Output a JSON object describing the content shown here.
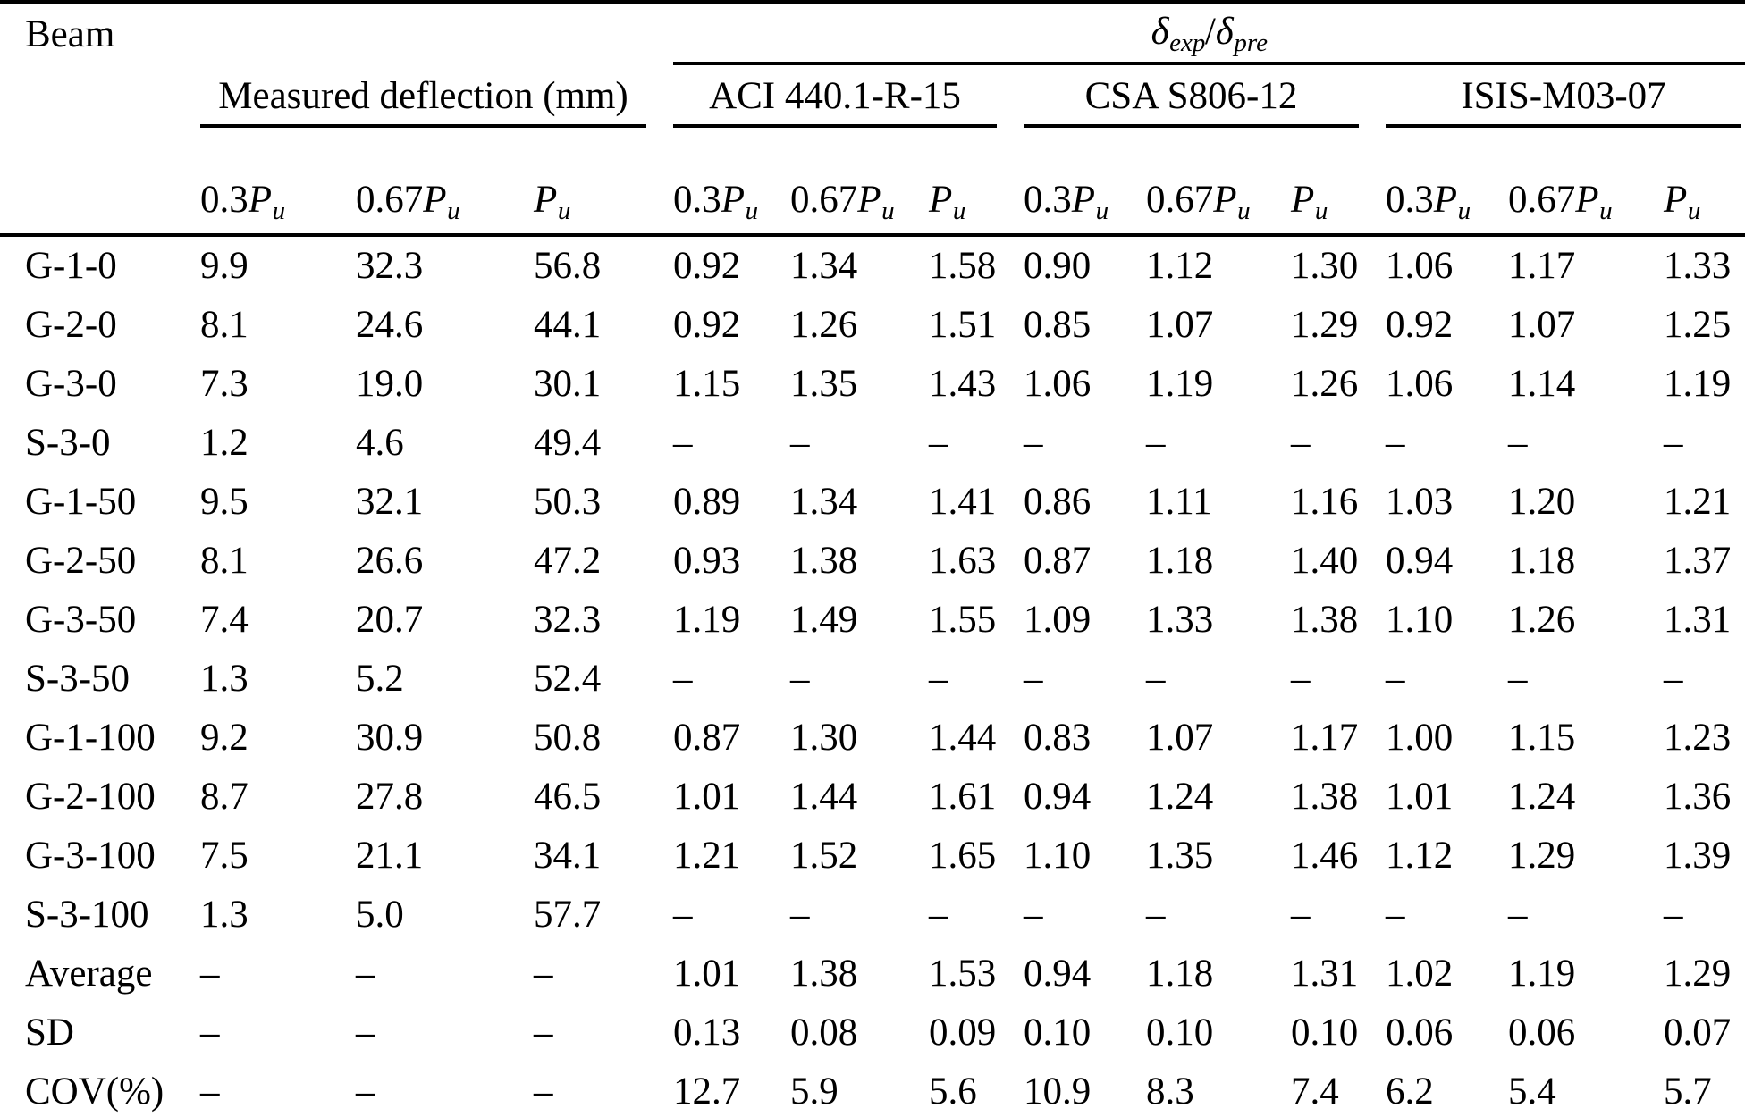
{
  "table": {
    "beam_header": "Beam",
    "ratio_header": {
      "num_symbol": "δ",
      "num_sub": "exp",
      "separator": "/",
      "den_symbol": "δ",
      "den_sub": "pre"
    },
    "measured_header": "Measured deflection (mm)",
    "code_groups": [
      "ACI 440.1-R-15",
      "CSA S806-12",
      "ISIS-M03-07"
    ],
    "load_levels": [
      {
        "coef": "0.3",
        "symbol": "P",
        "subscript": "u"
      },
      {
        "coef": "0.67",
        "symbol": "P",
        "subscript": "u"
      },
      {
        "coef": "",
        "symbol": "P",
        "subscript": "u"
      }
    ],
    "rows": [
      {
        "beam": "G-1-0",
        "values": [
          "9.9",
          "32.3",
          "56.8",
          "0.92",
          "1.34",
          "1.58",
          "0.90",
          "1.12",
          "1.30",
          "1.06",
          "1.17",
          "1.33"
        ]
      },
      {
        "beam": "G-2-0",
        "values": [
          "8.1",
          "24.6",
          "44.1",
          "0.92",
          "1.26",
          "1.51",
          "0.85",
          "1.07",
          "1.29",
          "0.92",
          "1.07",
          "1.25"
        ]
      },
      {
        "beam": "G-3-0",
        "values": [
          "7.3",
          "19.0",
          "30.1",
          "1.15",
          "1.35",
          "1.43",
          "1.06",
          "1.19",
          "1.26",
          "1.06",
          "1.14",
          "1.19"
        ]
      },
      {
        "beam": "S-3-0",
        "values": [
          "1.2",
          "4.6",
          "49.4",
          "–",
          "–",
          "–",
          "–",
          "–",
          "–",
          "–",
          "–",
          "–"
        ]
      },
      {
        "beam": "G-1-50",
        "values": [
          "9.5",
          "32.1",
          "50.3",
          "0.89",
          "1.34",
          "1.41",
          "0.86",
          "1.11",
          "1.16",
          "1.03",
          "1.20",
          "1.21"
        ]
      },
      {
        "beam": "G-2-50",
        "values": [
          "8.1",
          "26.6",
          "47.2",
          "0.93",
          "1.38",
          "1.63",
          "0.87",
          "1.18",
          "1.40",
          "0.94",
          "1.18",
          "1.37"
        ]
      },
      {
        "beam": "G-3-50",
        "values": [
          "7.4",
          "20.7",
          "32.3",
          "1.19",
          "1.49",
          "1.55",
          "1.09",
          "1.33",
          "1.38",
          "1.10",
          "1.26",
          "1.31"
        ]
      },
      {
        "beam": "S-3-50",
        "values": [
          "1.3",
          "5.2",
          "52.4",
          "–",
          "–",
          "–",
          "–",
          "–",
          "–",
          "–",
          "–",
          "–"
        ]
      },
      {
        "beam": "G-1-100",
        "values": [
          "9.2",
          "30.9",
          "50.8",
          "0.87",
          "1.30",
          "1.44",
          "0.83",
          "1.07",
          "1.17",
          "1.00",
          "1.15",
          "1.23"
        ]
      },
      {
        "beam": "G-2-100",
        "values": [
          "8.7",
          "27.8",
          "46.5",
          "1.01",
          "1.44",
          "1.61",
          "0.94",
          "1.24",
          "1.38",
          "1.01",
          "1.24",
          "1.36"
        ]
      },
      {
        "beam": "G-3-100",
        "values": [
          "7.5",
          "21.1",
          "34.1",
          "1.21",
          "1.52",
          "1.65",
          "1.10",
          "1.35",
          "1.46",
          "1.12",
          "1.29",
          "1.39"
        ]
      },
      {
        "beam": "S-3-100",
        "values": [
          "1.3",
          "5.0",
          "57.7",
          "–",
          "–",
          "–",
          "–",
          "–",
          "–",
          "–",
          "–",
          "–"
        ]
      },
      {
        "beam": "Average",
        "values": [
          "–",
          "–",
          "–",
          "1.01",
          "1.38",
          "1.53",
          "0.94",
          "1.18",
          "1.31",
          "1.02",
          "1.19",
          "1.29"
        ]
      },
      {
        "beam": "SD",
        "values": [
          "–",
          "–",
          "–",
          "0.13",
          "0.08",
          "0.09",
          "0.10",
          "0.10",
          "0.10",
          "0.06",
          "0.06",
          "0.07"
        ]
      },
      {
        "beam": "COV(%)",
        "values": [
          "–",
          "–",
          "–",
          "12.7",
          "5.9",
          "5.6",
          "10.9",
          "8.3",
          "7.4",
          "6.2",
          "5.4",
          "5.7"
        ]
      }
    ]
  }
}
